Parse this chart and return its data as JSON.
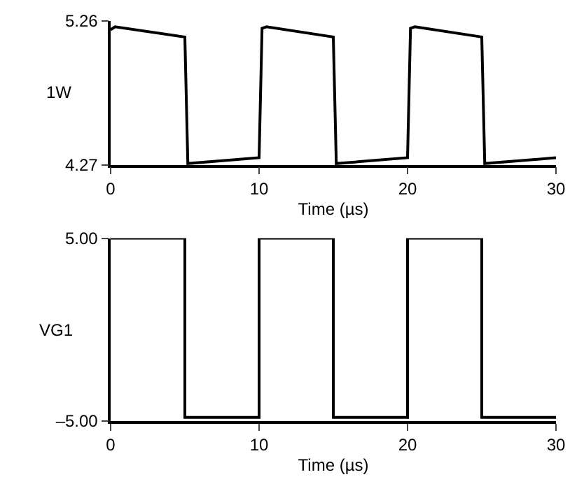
{
  "chart_data": [
    {
      "type": "line",
      "xlabel": "Time (µs)",
      "ylabel": "1W",
      "line_style": "solid",
      "x": [
        0,
        0.3,
        5,
        5.2,
        10,
        10.2,
        10.5,
        15,
        15.2,
        20,
        20.2,
        20.5,
        25,
        25.2,
        30
      ],
      "series": [
        {
          "color": "#000000",
          "values": [
            5.2,
            5.22,
            5.15,
            4.28,
            4.32,
            5.21,
            5.22,
            5.15,
            4.28,
            4.32,
            5.21,
            5.22,
            5.15,
            4.28,
            4.32
          ]
        }
      ],
      "xlim": [
        0,
        30
      ],
      "xticks": [
        0,
        10,
        20,
        30
      ],
      "ylim": [
        4.27,
        5.26
      ],
      "yticks": [
        4.27,
        5.26
      ]
    },
    {
      "type": "line",
      "xlabel": "Time (µs)",
      "ylabel": "VG1",
      "line_style": "solid",
      "x": [
        0,
        5,
        5,
        10,
        10,
        15,
        15,
        20,
        20,
        25,
        25,
        30
      ],
      "series": [
        {
          "color": "#000000",
          "values": [
            5,
            5,
            -4.8,
            -4.8,
            5,
            5,
            -4.8,
            -4.8,
            5,
            5,
            -4.8,
            -4.8
          ]
        }
      ],
      "xlim": [
        0,
        30
      ],
      "xticks": [
        0,
        10,
        20,
        30
      ],
      "ylim": [
        -5,
        5
      ],
      "yticks": [
        {
          "value": 5,
          "label": "5.00"
        },
        {
          "value": -5,
          "label": "–5.00"
        }
      ]
    }
  ]
}
